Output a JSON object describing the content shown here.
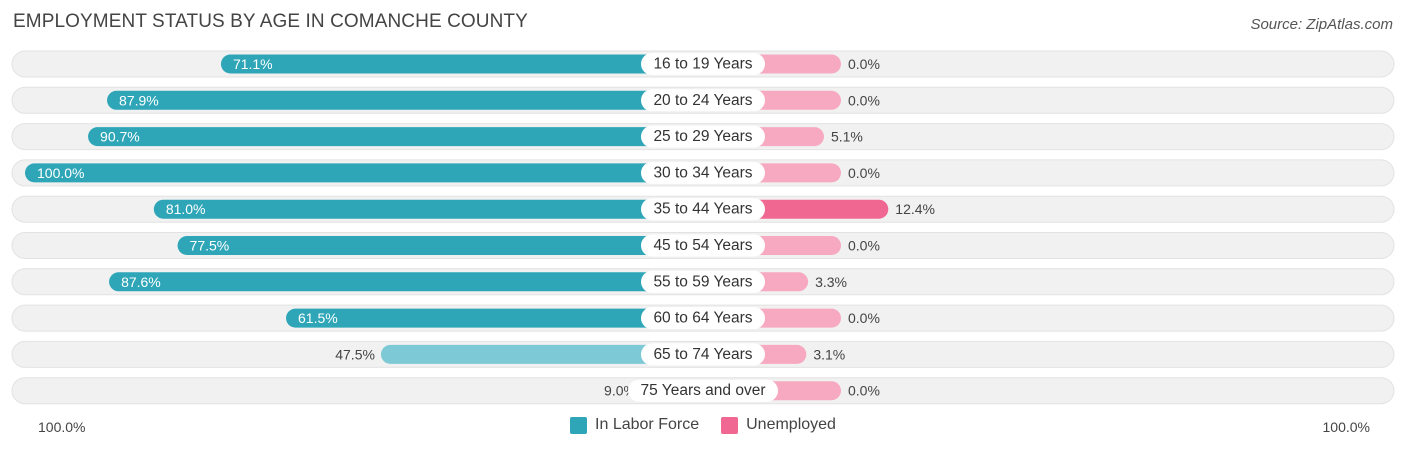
{
  "header": {
    "title": "EMPLOYMENT STATUS BY AGE IN COMANCHE COUNTY",
    "source": "Source: ZipAtlas.com"
  },
  "colors": {
    "labor_strong": "#2ea6b8",
    "labor_light": "#7dcad6",
    "unemployed_strong": "#f06792",
    "unemployed_light": "#f7a9c1",
    "track": "#f1f1f1",
    "track_border": "#e2e2e2"
  },
  "chart_data": {
    "type": "bar",
    "orientation": "horizontal-diverging",
    "title": "EMPLOYMENT STATUS BY AGE IN COMANCHE COUNTY",
    "categories": [
      "16 to 19 Years",
      "20 to 24 Years",
      "25 to 29 Years",
      "30 to 34 Years",
      "35 to 44 Years",
      "45 to 54 Years",
      "55 to 59 Years",
      "60 to 64 Years",
      "65 to 74 Years",
      "75 Years and over"
    ],
    "series": [
      {
        "name": "In Labor Force",
        "values": [
          71.1,
          87.9,
          90.7,
          100.0,
          81.0,
          77.5,
          87.6,
          61.5,
          47.5,
          9.0
        ],
        "labels": [
          "71.1%",
          "87.9%",
          "90.7%",
          "100.0%",
          "81.0%",
          "77.5%",
          "87.6%",
          "61.5%",
          "47.5%",
          "9.0%"
        ]
      },
      {
        "name": "Unemployed",
        "values": [
          0.0,
          0.0,
          5.1,
          0.0,
          12.4,
          0.0,
          3.3,
          0.0,
          3.1,
          0.0
        ],
        "labels": [
          "0.0%",
          "0.0%",
          "5.1%",
          "0.0%",
          "12.4%",
          "0.0%",
          "3.3%",
          "0.0%",
          "3.1%",
          "0.0%"
        ]
      }
    ],
    "left_axis_label": "100.0%",
    "right_axis_label": "100.0%",
    "xlim": [
      -100,
      100
    ],
    "legend_position": "bottom-center"
  }
}
